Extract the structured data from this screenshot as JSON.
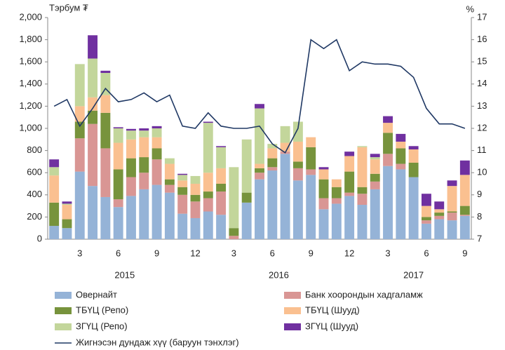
{
  "chart_data": {
    "type": "bar",
    "stacked": true,
    "y_label": "Тэрбум ₮",
    "y2_label": "%",
    "categories": [
      null,
      null,
      "3",
      null,
      null,
      "6",
      null,
      null,
      "9",
      null,
      null,
      "12",
      null,
      null,
      "3",
      null,
      null,
      "6",
      null,
      null,
      "9",
      null,
      null,
      "12",
      null,
      null,
      "3",
      null,
      null,
      "6",
      null,
      null,
      "9"
    ],
    "years": [
      "2015",
      "2016",
      "2017"
    ],
    "ylim": [
      0,
      2000
    ],
    "yticks": [
      0,
      200,
      400,
      600,
      800,
      {
        "value": 1000,
        "label": "1,000"
      },
      {
        "value": 1200,
        "label": "1,200"
      },
      {
        "value": 1400,
        "label": "1,400"
      },
      {
        "value": 1600,
        "label": "1,600"
      },
      {
        "value": 1800,
        "label": "1,800"
      },
      {
        "value": 2000,
        "label": "2,000"
      }
    ],
    "y2lim": [
      7,
      17
    ],
    "y2ticks": [
      7,
      8,
      9,
      10,
      11,
      12,
      13,
      14,
      15,
      16,
      17
    ],
    "series": [
      {
        "name": "Овернайт",
        "color": "#95b3d7",
        "values": [
          120,
          100,
          610,
          480,
          380,
          290,
          390,
          450,
          490,
          420,
          230,
          190,
          250,
          220,
          0,
          330,
          540,
          620,
          770,
          530,
          580,
          270,
          320,
          390,
          310,
          450,
          660,
          630,
          560,
          140,
          180,
          170,
          210
        ]
      },
      {
        "name": "Банк хоорондын хадгаламж",
        "color": "#d99694",
        "values": [
          0,
          0,
          300,
          560,
          440,
          70,
          170,
          150,
          230,
          70,
          170,
          150,
          120,
          210,
          30,
          0,
          60,
          30,
          20,
          110,
          50,
          100,
          50,
          30,
          100,
          70,
          110,
          50,
          0,
          30,
          30,
          70,
          10
        ]
      },
      {
        "name": "ТБҮЦ (Репо)",
        "color": "#77933c",
        "values": [
          210,
          80,
          150,
          120,
          320,
          270,
          170,
          140,
          100,
          50,
          70,
          60,
          60,
          70,
          70,
          90,
          40,
          80,
          0,
          60,
          200,
          170,
          100,
          190,
          60,
          70,
          190,
          140,
          130,
          30,
          30,
          10,
          80
        ]
      },
      {
        "name": "ТБҮЦ (Шууд)",
        "color": "#fac090",
        "values": [
          245,
          130,
          140,
          120,
          160,
          240,
          170,
          180,
          100,
          140,
          60,
          100,
          170,
          140,
          0,
          0,
          40,
          90,
          80,
          180,
          90,
          90,
          70,
          140,
          360,
          130,
          90,
          60,
          120,
          100,
          30,
          230,
          280
        ]
      },
      {
        "name": "ЗГҮЦ (Репо)",
        "color": "#c3d69b",
        "values": [
          75,
          10,
          380,
          350,
          200,
          130,
          80,
          60,
          80,
          50,
          50,
          70,
          450,
          190,
          550,
          480,
          500,
          40,
          150,
          180,
          0,
          0,
          0,
          0,
          10,
          20,
          0,
          0,
          0,
          0,
          0,
          0,
          0
        ]
      },
      {
        "name": "ЗГҮЦ (Шууд)",
        "color": "#7030a0",
        "values": [
          70,
          20,
          0,
          210,
          20,
          10,
          15,
          20,
          20,
          0,
          10,
          0,
          10,
          10,
          0,
          0,
          40,
          0,
          0,
          0,
          0,
          20,
          0,
          40,
          0,
          30,
          60,
          70,
          30,
          110,
          70,
          50,
          130
        ]
      },
      {
        "name": "Жигнэсэн дундаж хүү (баруун тэнхлэг)",
        "type": "line",
        "axis": "y2",
        "color": "#1f3864",
        "values": [
          13.0,
          13.3,
          12.1,
          12.9,
          13.8,
          13.2,
          13.3,
          13.6,
          13.2,
          13.5,
          12.1,
          12.0,
          12.7,
          12.1,
          12.0,
          12.0,
          12.1,
          11.3,
          10.9,
          12.0,
          16.0,
          15.6,
          16.0,
          14.6,
          15.0,
          14.9,
          14.9,
          14.8,
          14.3,
          12.9,
          12.2,
          12.2,
          12.0
        ]
      }
    ]
  }
}
